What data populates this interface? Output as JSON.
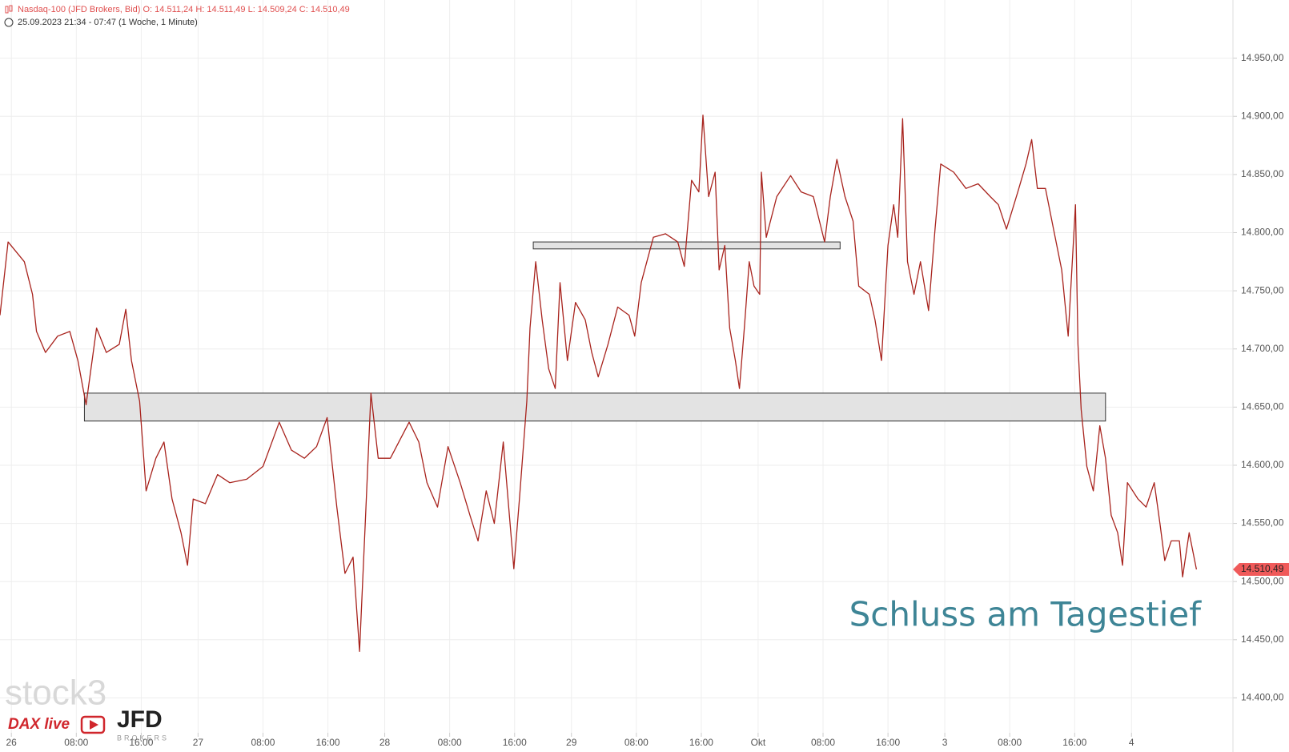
{
  "chart_data": {
    "type": "line",
    "title": "Nasdaq-100 (JFD Brokers, Bid)  O: 14.511,24  H: 14.511,49  L: 14.509,24  C: 14.510,49",
    "subtitle": "25.09.2023 21:34 - 07:47  (1 Woche, 1 Minute)",
    "annotation": "Schluss am Tagestief",
    "logos": [
      "stock3",
      "DAX live",
      "JFD",
      "BROKERS"
    ],
    "series": [
      {
        "name": "Nasdaq-100",
        "color": "#a8231d",
        "x": [
          -1.4,
          -0.4,
          1.6,
          2.6,
          3.1,
          4.2,
          5.7,
          7.2,
          8.2,
          9.2,
          10.5,
          11.7,
          13.3,
          14.1,
          14.8,
          15.8,
          16.6,
          17.8,
          18.8,
          19.8,
          20.9,
          21.7,
          22.4,
          23.9,
          25.4,
          26.9,
          29.0,
          31.0,
          33.0,
          34.5,
          36.1,
          37.6,
          38.9,
          40.1,
          41.1,
          42.1,
          42.9,
          43.6,
          44.3,
          45.2,
          46.7,
          49.0,
          50.2,
          51.2,
          52.5,
          53.8,
          55.3,
          56.5,
          57.5,
          58.5,
          59.5,
          60.6,
          61.9,
          62.6,
          63.5,
          63.9,
          64.6,
          65.4,
          66.2,
          67.0,
          67.6,
          68.5,
          69.5,
          70.7,
          71.5,
          72.3,
          73.5,
          74.7,
          76.1,
          76.8,
          77.6,
          79.1,
          80.6,
          82.1,
          82.9,
          83.8,
          84.7,
          85.2,
          85.9,
          86.7,
          87.2,
          87.9,
          88.5,
          89.2,
          89.7,
          90.3,
          90.9,
          91.5,
          92.2,
          92.4,
          93.0,
          94.3,
          96.0,
          97.3,
          98.8,
          100.2,
          100.9,
          101.7,
          102.7,
          103.7,
          104.4,
          105.7,
          106.4,
          107.2,
          108.0,
          108.7,
          109.2,
          109.8,
          110.4,
          111.2,
          112.0,
          113.0,
          113.8,
          114.5,
          116.1,
          117.6,
          119.1,
          120.6,
          121.6,
          122.6,
          124.0,
          125.0,
          125.7,
          126.4,
          127.4,
          128.4,
          129.4,
          130.2,
          130.6,
          131.1,
          131.4,
          131.8,
          132.5,
          133.3,
          134.1,
          134.8,
          135.5,
          136.3,
          136.9,
          137.5,
          138.8,
          139.8,
          140.8,
          141.5,
          142.1,
          142.9,
          143.9,
          144.3,
          145.1,
          146.0
        ],
        "values": [
          14729,
          14792,
          14775,
          14747,
          14715,
          14697,
          14711,
          14715,
          14690,
          14652,
          14718,
          14697,
          14704,
          14734,
          14690,
          14655,
          14578,
          14606,
          14620,
          14571,
          14542,
          14514,
          14571,
          14567,
          14592,
          14585,
          14588,
          14599,
          14637,
          14613,
          14606,
          14616,
          14641,
          14564,
          14507,
          14521,
          14440,
          14550,
          14662,
          14606,
          14606,
          14637,
          14620,
          14585,
          14564,
          14616,
          14585,
          14557,
          14535,
          14578,
          14550,
          14620,
          14511,
          14571,
          14655,
          14718,
          14775,
          14725,
          14683,
          14666,
          14757,
          14690,
          14740,
          14725,
          14697,
          14676,
          14704,
          14736,
          14729,
          14711,
          14757,
          14796,
          14799,
          14792,
          14771,
          14845,
          14835,
          14901,
          14831,
          14852,
          14768,
          14789,
          14718,
          14690,
          14666,
          14718,
          14775,
          14754,
          14747,
          14852,
          14796,
          14831,
          14849,
          14835,
          14831,
          14792,
          14831,
          14863,
          14831,
          14810,
          14754,
          14747,
          14725,
          14690,
          14789,
          14824,
          14796,
          14898,
          14775,
          14747,
          14775,
          14733,
          14803,
          14859,
          14852,
          14838,
          14842,
          14831,
          14824,
          14803,
          14835,
          14859,
          14880,
          14838,
          14838,
          14803,
          14768,
          14711,
          14761,
          14824,
          14704,
          14648,
          14599,
          14578,
          14634,
          14606,
          14557,
          14542,
          14514,
          14585,
          14571,
          14564,
          14585,
          14550,
          14518,
          14535,
          14535,
          14504,
          14542,
          14510.49
        ]
      }
    ],
    "last_price": {
      "value": 14510.49,
      "label": "14.510,49",
      "color": "#f05a5a"
    },
    "zones": [
      {
        "x": [
          9.0,
          134.8
        ],
        "y": [
          14638,
          14662
        ]
      },
      {
        "x": [
          64.3,
          102.1
        ],
        "y": [
          14786,
          14792
        ]
      }
    ],
    "xlim": [
      -1.4,
      150.5
    ],
    "xticks": [
      {
        "value": 0,
        "label": "26"
      },
      {
        "value": 8,
        "label": "08:00"
      },
      {
        "value": 16,
        "label": "16:00"
      },
      {
        "value": 23,
        "label": "27"
      },
      {
        "value": 31,
        "label": "08:00"
      },
      {
        "value": 39,
        "label": "16:00"
      },
      {
        "value": 46,
        "label": "28"
      },
      {
        "value": 54,
        "label": "08:00"
      },
      {
        "value": 62,
        "label": "16:00"
      },
      {
        "value": 69,
        "label": "29"
      },
      {
        "value": 77,
        "label": "08:00"
      },
      {
        "value": 85,
        "label": "16:00"
      },
      {
        "value": 92,
        "label": "Okt"
      },
      {
        "value": 100,
        "label": "08:00"
      },
      {
        "value": 108,
        "label": "16:00"
      },
      {
        "value": 115,
        "label": "3"
      },
      {
        "value": 123,
        "label": "08:00"
      },
      {
        "value": 131,
        "label": "16:00"
      },
      {
        "value": 138,
        "label": "4"
      }
    ],
    "ylim": [
      14370,
      15000
    ],
    "yticks": [
      {
        "value": 14400,
        "label": "14.400,00"
      },
      {
        "value": 14450,
        "label": "14.450,00"
      },
      {
        "value": 14500,
        "label": "14.500,00"
      },
      {
        "value": 14550,
        "label": "14.550,00"
      },
      {
        "value": 14600,
        "label": "14.600,00"
      },
      {
        "value": 14650,
        "label": "14.650,00"
      },
      {
        "value": 14700,
        "label": "14.700,00"
      },
      {
        "value": 14750,
        "label": "14.750,00"
      },
      {
        "value": 14800,
        "label": "14.800,00"
      },
      {
        "value": 14850,
        "label": "14.850,00"
      },
      {
        "value": 14900,
        "label": "14.900,00"
      },
      {
        "value": 14950,
        "label": "14.950,00"
      }
    ],
    "grid": true
  }
}
